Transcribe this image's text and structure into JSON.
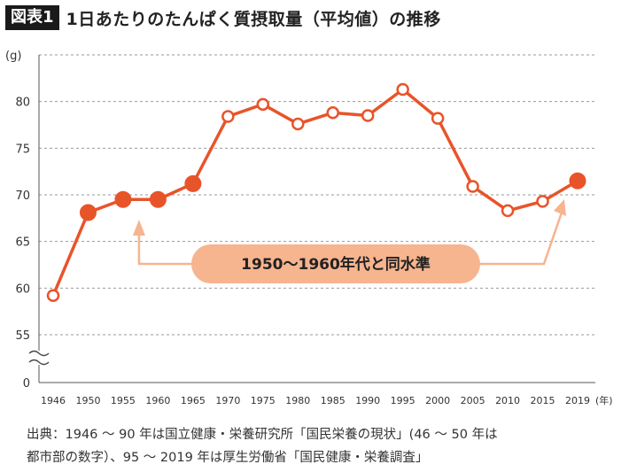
{
  "header": {
    "figure_label": "図表1",
    "title": "1日あたりのたんぱく質摂取量（平均値）の推移"
  },
  "chart_data": {
    "type": "line",
    "title": "1日あたりのたんぱく質摂取量（平均値）の推移",
    "ylabel": "(g)",
    "xlabel": "(年)",
    "y_ticks": [
      "0",
      "55",
      "60",
      "65",
      "70",
      "75",
      "80"
    ],
    "y_axis_break": "between 0 and 55",
    "ylim": [
      55,
      85
    ],
    "grid": true,
    "categories": [
      "1946",
      "1950",
      "1955",
      "1960",
      "1965",
      "1970",
      "1975",
      "1980",
      "1985",
      "1990",
      "1995",
      "2000",
      "2005",
      "2010",
      "2015",
      "2019"
    ],
    "values": [
      59.2,
      68.1,
      69.5,
      69.5,
      71.2,
      78.4,
      79.7,
      77.6,
      78.8,
      78.5,
      81.3,
      78.2,
      70.9,
      68.3,
      69.3,
      71.5
    ],
    "highlighted": [
      false,
      true,
      true,
      true,
      true,
      false,
      false,
      false,
      false,
      false,
      false,
      false,
      false,
      false,
      false,
      true
    ],
    "series_color": "#e8542a",
    "annotation": {
      "text": "1950〜1960年代と同水準",
      "fill_color": "#f6b48f",
      "arrow_color": "#f6b48f"
    }
  },
  "footer": {
    "source_line1": "出典：1946 〜 90 年は国立健康・栄養研究所「国民栄養の現状」(46 〜 50 年は",
    "source_line2": "都市部の数字）、95 〜 2019 年は厚生労働省「国民健康・栄養調査」"
  }
}
